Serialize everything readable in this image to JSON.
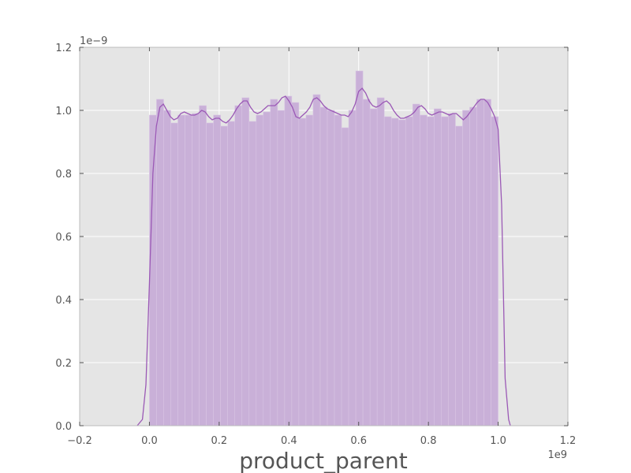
{
  "chart_data": {
    "type": "bar",
    "subtype": "histogram_with_kde",
    "title": "",
    "xlabel": "product_parent",
    "ylabel": "",
    "x_exponent_label": "1e9",
    "y_exponent_label": "1e−9",
    "xlim": [
      -0.2,
      1.2
    ],
    "ylim": [
      0.0,
      1.2
    ],
    "x_ticks": [
      -0.2,
      0.0,
      0.2,
      0.4,
      0.6,
      0.8,
      1.0,
      1.2
    ],
    "x_tick_labels": [
      "−0.2",
      "0.0",
      "0.2",
      "0.4",
      "0.6",
      "0.8",
      "1.0",
      "1.2"
    ],
    "y_ticks": [
      0.0,
      0.2,
      0.4,
      0.6,
      0.8,
      1.0,
      1.2
    ],
    "y_tick_labels": [
      "0.0",
      "0.2",
      "0.4",
      "0.6",
      "0.8",
      "1.0",
      "1.2"
    ],
    "grid": true,
    "background": "#e5e5e5",
    "bar_color": "#c9b0d8",
    "kde_color": "#9b59b6",
    "bins": {
      "x_start": 0.0,
      "x_end": 1.0,
      "heights": [
        0.985,
        1.035,
        1.0,
        0.96,
        0.985,
        0.985,
        0.99,
        1.015,
        0.96,
        0.985,
        0.95,
        0.965,
        1.015,
        1.04,
        0.965,
        0.985,
        0.995,
        1.035,
        1.0,
        1.045,
        1.025,
        0.975,
        0.985,
        1.05,
        1.01,
        1.0,
        0.985,
        0.945,
        1.0,
        1.125,
        1.035,
        1.005,
        1.04,
        0.98,
        0.975,
        0.97,
        0.98,
        1.02,
        0.985,
        0.98,
        1.005,
        0.98,
        0.99,
        0.95,
        1.0,
        1.01,
        1.035,
        1.035,
        0.98
      ]
    },
    "kde": {
      "x": [
        -0.035,
        -0.02,
        -0.01,
        0.0,
        0.01,
        0.02,
        0.03,
        0.04,
        0.05,
        0.06,
        0.07,
        0.08,
        0.09,
        0.1,
        0.11,
        0.12,
        0.13,
        0.14,
        0.15,
        0.16,
        0.17,
        0.18,
        0.19,
        0.2,
        0.21,
        0.22,
        0.23,
        0.24,
        0.25,
        0.26,
        0.27,
        0.28,
        0.29,
        0.3,
        0.31,
        0.32,
        0.33,
        0.34,
        0.35,
        0.36,
        0.37,
        0.38,
        0.39,
        0.4,
        0.41,
        0.42,
        0.43,
        0.44,
        0.45,
        0.46,
        0.47,
        0.48,
        0.49,
        0.5,
        0.51,
        0.52,
        0.53,
        0.54,
        0.55,
        0.56,
        0.57,
        0.58,
        0.59,
        0.6,
        0.61,
        0.62,
        0.63,
        0.64,
        0.65,
        0.66,
        0.67,
        0.68,
        0.69,
        0.7,
        0.71,
        0.72,
        0.73,
        0.74,
        0.75,
        0.76,
        0.77,
        0.78,
        0.79,
        0.8,
        0.81,
        0.82,
        0.83,
        0.84,
        0.85,
        0.86,
        0.87,
        0.88,
        0.89,
        0.9,
        0.91,
        0.92,
        0.93,
        0.94,
        0.95,
        0.96,
        0.97,
        0.98,
        0.99,
        1.0,
        1.01,
        1.02,
        1.03,
        1.035
      ],
      "y": [
        0.0,
        0.02,
        0.13,
        0.45,
        0.8,
        0.95,
        1.01,
        1.02,
        1.0,
        0.98,
        0.97,
        0.975,
        0.99,
        0.995,
        0.99,
        0.985,
        0.985,
        0.99,
        1.0,
        0.995,
        0.98,
        0.97,
        0.975,
        0.975,
        0.965,
        0.96,
        0.97,
        0.985,
        1.005,
        1.02,
        1.03,
        1.03,
        1.01,
        0.995,
        0.99,
        0.995,
        1.005,
        1.015,
        1.015,
        1.015,
        1.025,
        1.04,
        1.045,
        1.03,
        1.01,
        0.98,
        0.975,
        0.985,
        0.995,
        1.01,
        1.035,
        1.04,
        1.03,
        1.015,
        1.005,
        1.0,
        0.995,
        0.99,
        0.985,
        0.985,
        0.98,
        0.995,
        1.02,
        1.06,
        1.07,
        1.055,
        1.03,
        1.015,
        1.01,
        1.015,
        1.025,
        1.03,
        1.02,
        1.0,
        0.985,
        0.975,
        0.975,
        0.98,
        0.985,
        0.995,
        1.01,
        1.015,
        1.005,
        0.99,
        0.985,
        0.99,
        0.995,
        0.995,
        0.99,
        0.985,
        0.99,
        0.99,
        0.98,
        0.97,
        0.98,
        0.995,
        1.01,
        1.025,
        1.035,
        1.035,
        1.025,
        1.005,
        0.98,
        0.94,
        0.7,
        0.15,
        0.02,
        0.0
      ]
    }
  }
}
